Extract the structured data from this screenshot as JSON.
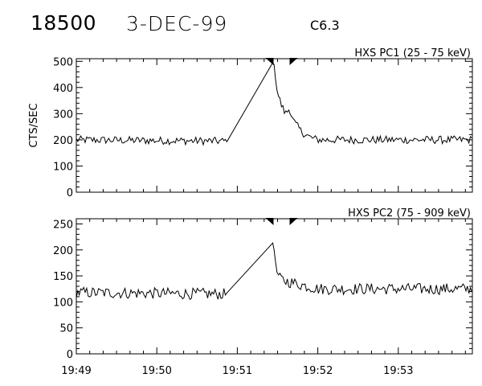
{
  "header": {
    "event_id": "18500",
    "date": "3-DEC-99",
    "flare_class": "C6.3"
  },
  "chart_data": [
    {
      "type": "line",
      "title": "HXS PC1 (25 - 75 keV)",
      "ylabel": "CTS/SEC",
      "xlabel": "",
      "y_ticks": [
        0,
        100,
        200,
        300,
        400,
        500
      ],
      "ylim": [
        0,
        510
      ],
      "xlim": [
        "19:49:00",
        "19:53:55"
      ],
      "x_tick_labels": [
        "19:49",
        "19:50",
        "19:51",
        "19:52",
        "19:53"
      ],
      "x_tick_values_min": [
        0,
        1,
        2,
        3,
        4
      ],
      "markers_min": [
        2.45,
        2.65
      ],
      "series": [
        {
          "baseline": 200,
          "noise": 30,
          "keypoints_min": [
            [
              0.0,
              200
            ],
            [
              1.85,
              195
            ],
            [
              2.45,
              500
            ],
            [
              2.46,
              480
            ],
            [
              2.5,
              380
            ],
            [
              2.55,
              330
            ],
            [
              2.6,
              300
            ],
            [
              2.65,
              320
            ],
            [
              2.7,
              270
            ],
            [
              2.8,
              230
            ],
            [
              2.9,
              210
            ],
            [
              3.0,
              200
            ],
            [
              4.92,
              200
            ]
          ],
          "gap_min": [
            1.88,
            2.44
          ]
        }
      ]
    },
    {
      "type": "line",
      "title": "HXS PC2 (75 - 909 keV)",
      "ylabel": "",
      "xlabel": "",
      "y_ticks": [
        0,
        50,
        100,
        150,
        200,
        250
      ],
      "ylim": [
        0,
        260
      ],
      "xlim": [
        "19:49:00",
        "19:53:55"
      ],
      "x_tick_labels": [
        "19:49",
        "19:50",
        "19:51",
        "19:52",
        "19:53"
      ],
      "x_tick_values_min": [
        0,
        1,
        2,
        3,
        4
      ],
      "markers_min": [
        2.45,
        2.65
      ],
      "series": [
        {
          "baseline": 118,
          "noise": 22,
          "keypoints_min": [
            [
              0.0,
              118
            ],
            [
              1.85,
              115
            ],
            [
              2.45,
              215
            ],
            [
              2.47,
              170
            ],
            [
              2.52,
              145
            ],
            [
              2.6,
              140
            ],
            [
              3.0,
              125
            ],
            [
              4.92,
              125
            ]
          ],
          "gap_min": [
            1.88,
            2.44
          ]
        }
      ]
    }
  ]
}
